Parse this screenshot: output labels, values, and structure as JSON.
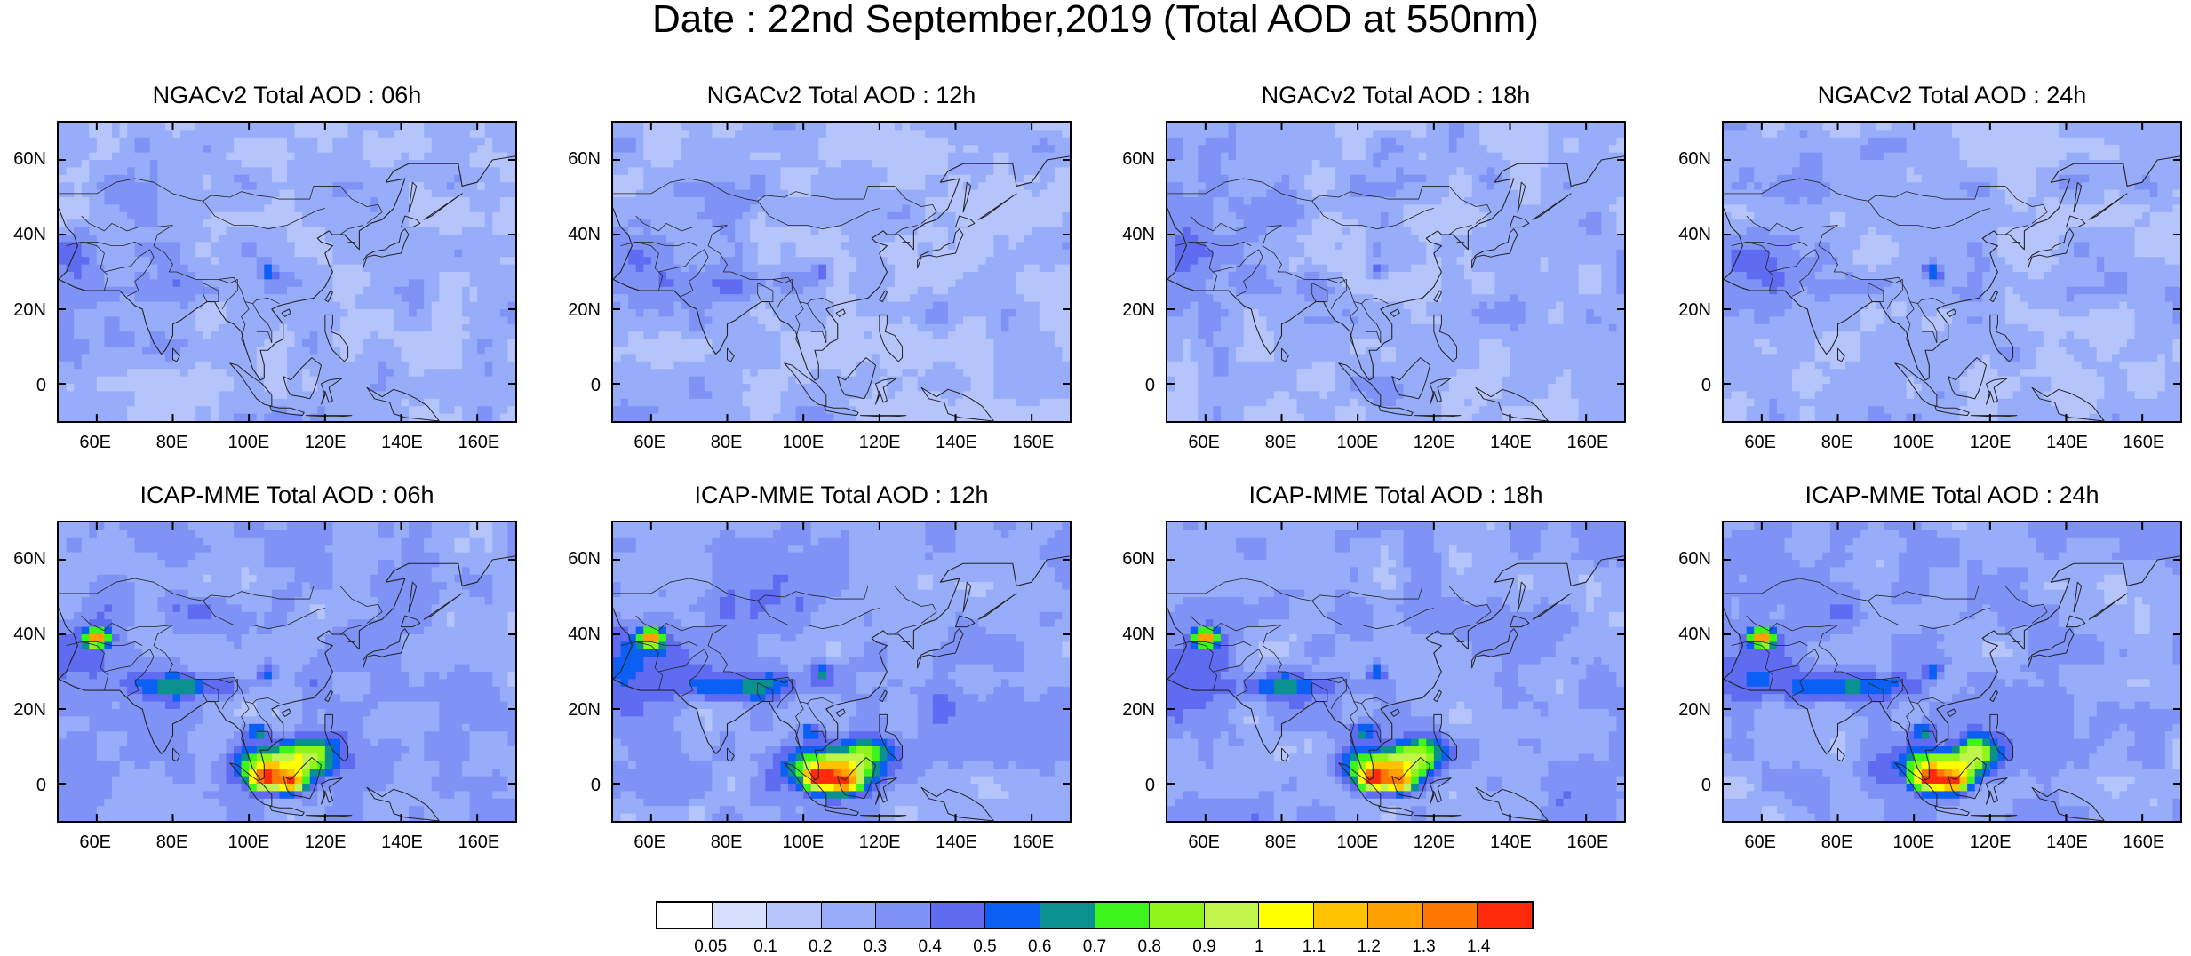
{
  "title": "Date : 22nd September,2019 (Total AOD at 550nm)",
  "panels": [
    {
      "title": "NGACv2 Total AOD : 06h",
      "model": "NGACv2",
      "hour": "06h"
    },
    {
      "title": "NGACv2 Total AOD : 12h",
      "model": "NGACv2",
      "hour": "12h"
    },
    {
      "title": "NGACv2 Total AOD : 18h",
      "model": "NGACv2",
      "hour": "18h"
    },
    {
      "title": "NGACv2 Total AOD : 24h",
      "model": "NGACv2",
      "hour": "24h"
    },
    {
      "title": "ICAP-MME Total AOD : 06h",
      "model": "ICAP-MME",
      "hour": "06h"
    },
    {
      "title": "ICAP-MME Total AOD : 12h",
      "model": "ICAP-MME",
      "hour": "12h"
    },
    {
      "title": "ICAP-MME Total AOD : 18h",
      "model": "ICAP-MME",
      "hour": "18h"
    },
    {
      "title": "ICAP-MME Total AOD : 24h",
      "model": "ICAP-MME",
      "hour": "24h"
    }
  ],
  "lat_ticks": [
    "60N",
    "40N",
    "20N",
    "0"
  ],
  "lon_ticks": [
    "60E",
    "80E",
    "100E",
    "120E",
    "140E",
    "160E"
  ],
  "colorbar": {
    "labels": [
      "0.05",
      "0.1",
      "0.2",
      "0.3",
      "0.4",
      "0.5",
      "0.6",
      "0.7",
      "0.8",
      "0.9",
      "1",
      "1.1",
      "1.2",
      "1.3",
      "1.4"
    ],
    "colors": [
      "#ffffff",
      "#d6dffd",
      "#b5c5fb",
      "#98adf9",
      "#7f93f6",
      "#5f6cf1",
      "#0b5ff4",
      "#0b9090",
      "#3df51b",
      "#90f51a",
      "#c2f54c",
      "#ffff00",
      "#ffc300",
      "#ffa000",
      "#ff7600",
      "#ff2a0a"
    ]
  }
}
